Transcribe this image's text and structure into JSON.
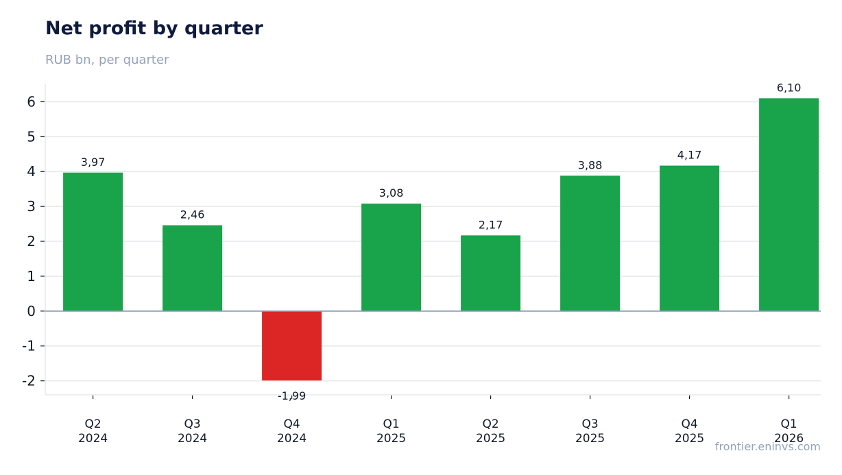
{
  "title": "Net profit by quarter",
  "subtitle": "RUB bn, per quarter",
  "source": "frontier.eninvs.com",
  "colors": {
    "positive": "#19a34a",
    "negative": "#dc2626",
    "grid": "#e5e7eb",
    "zero": "#8a9bb3",
    "text": "#111827",
    "axis": "#d1d5db"
  },
  "chart_data": {
    "type": "bar",
    "categories": [
      [
        "Q2",
        "2024"
      ],
      [
        "Q3",
        "2024"
      ],
      [
        "Q4",
        "2024"
      ],
      [
        "Q1",
        "2025"
      ],
      [
        "Q2",
        "2025"
      ],
      [
        "Q3",
        "2025"
      ],
      [
        "Q4",
        "2025"
      ],
      [
        "Q1",
        "2026"
      ]
    ],
    "values": [
      3.97,
      2.46,
      -1.99,
      3.08,
      2.17,
      3.88,
      4.17,
      6.1
    ],
    "labels": [
      "3,97",
      "2,46",
      "-1,99",
      "3,08",
      "2,17",
      "3,88",
      "4,17",
      "6,10"
    ],
    "y_ticks": [
      -2,
      -1,
      0,
      1,
      2,
      3,
      4,
      5,
      6
    ],
    "y_tick_labels": [
      "-2",
      "-1",
      "0",
      "1",
      "2",
      "3",
      "4",
      "5",
      "6"
    ],
    "ylim": [
      -2.4,
      6.5
    ],
    "grid": true,
    "legend": "none"
  }
}
